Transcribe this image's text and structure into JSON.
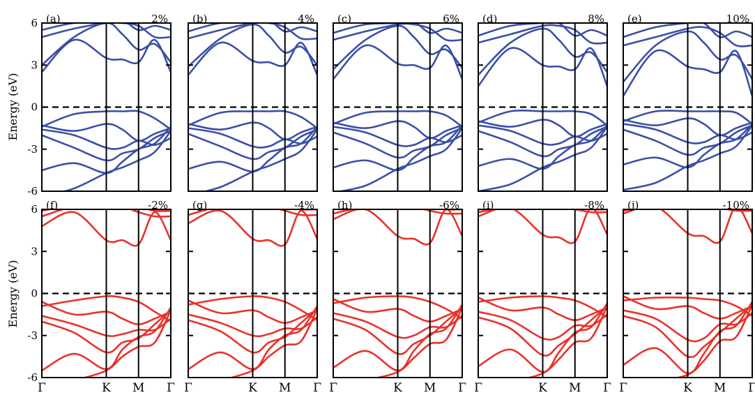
{
  "figure": {
    "ylabel": "Energy (eV)",
    "yticks": [
      6,
      3,
      0,
      -3,
      -6
    ],
    "ylim": [
      -6,
      6
    ],
    "kpoints": [
      "Γ",
      "K",
      "M",
      "Γ"
    ],
    "kpath_fractions": [
      0,
      0.5,
      0.75,
      1
    ],
    "fermi_level": 0,
    "colors": {
      "tensile": "#3a4fa6",
      "compressive": "#e8322b",
      "axes": "#000000"
    }
  },
  "chart_data": [
    {
      "type": "line",
      "panel": "(a)",
      "strain": "2%",
      "family": "tensile",
      "kx": [
        0,
        0.25,
        0.5,
        0.625,
        0.75,
        0.875,
        1
      ],
      "series": [
        {
          "values": [
            -6.4,
            -5.8,
            -4.7,
            -4.3,
            -3.8,
            -3.2,
            -1.7
          ]
        },
        {
          "values": [
            -4.5,
            -4.0,
            -4.7,
            -3.9,
            -3.0,
            -2.6,
            -1.4
          ]
        },
        {
          "values": [
            -2.0,
            -2.9,
            -3.8,
            -3.3,
            -3.0,
            -2.2,
            -1.7
          ]
        },
        {
          "values": [
            -1.6,
            -2.0,
            -2.9,
            -2.9,
            -2.4,
            -2.7,
            -2.2
          ]
        },
        {
          "values": [
            -1.3,
            -1.7,
            -1.2,
            -1.6,
            -2.4,
            -1.9,
            -1.5
          ]
        },
        {
          "values": [
            -1.4,
            -0.5,
            -0.3,
            -0.3,
            -0.3,
            -0.8,
            -1.6
          ]
        },
        {
          "values": [
            2.5,
            4.8,
            3.5,
            3.4,
            3.2,
            4.8,
            2.5
          ]
        },
        {
          "values": [
            3.0,
            5.0,
            6.0,
            5.2,
            4.1,
            4.5,
            3.2
          ]
        },
        {
          "values": [
            5.0,
            5.6,
            6.0,
            6.0,
            5.8,
            5.0,
            5.0
          ]
        },
        {
          "values": [
            5.5,
            6.0,
            6.0,
            6.2,
            5.5,
            5.8,
            5.5
          ]
        }
      ]
    },
    {
      "type": "line",
      "panel": "(b)",
      "strain": "4%",
      "family": "tensile",
      "kx": [
        0,
        0.25,
        0.5,
        0.625,
        0.75,
        0.875,
        1
      ],
      "series": [
        {
          "values": [
            -6.3,
            -5.7,
            -4.6,
            -4.2,
            -3.7,
            -3.1,
            -1.6
          ]
        },
        {
          "values": [
            -4.4,
            -3.9,
            -4.6,
            -3.8,
            -2.9,
            -2.6,
            -1.4
          ]
        },
        {
          "values": [
            -1.9,
            -2.8,
            -3.7,
            -3.2,
            -2.9,
            -2.1,
            -1.6
          ]
        },
        {
          "values": [
            -1.5,
            -1.9,
            -2.8,
            -2.8,
            -2.3,
            -2.6,
            -2.1
          ]
        },
        {
          "values": [
            -1.2,
            -1.6,
            -1.1,
            -1.5,
            -2.3,
            -1.8,
            -1.4
          ]
        },
        {
          "values": [
            -1.3,
            -0.4,
            -0.3,
            -0.3,
            -0.3,
            -0.7,
            -1.5
          ]
        },
        {
          "values": [
            2.3,
            4.6,
            3.3,
            3.2,
            3.0,
            4.6,
            2.3
          ]
        },
        {
          "values": [
            2.9,
            4.9,
            5.9,
            5.1,
            3.9,
            4.3,
            3.0
          ]
        },
        {
          "values": [
            4.9,
            5.5,
            6.0,
            6.0,
            5.7,
            4.9,
            4.9
          ]
        },
        {
          "values": [
            5.4,
            6.0,
            6.0,
            6.2,
            5.4,
            5.7,
            5.4
          ]
        }
      ]
    },
    {
      "type": "line",
      "panel": "(c)",
      "strain": "6%",
      "family": "tensile",
      "kx": [
        0,
        0.25,
        0.5,
        0.625,
        0.75,
        0.875,
        1
      ],
      "series": [
        {
          "values": [
            -6.1,
            -5.6,
            -4.4,
            -4.0,
            -3.5,
            -3.0,
            -1.5
          ]
        },
        {
          "values": [
            -4.3,
            -3.8,
            -4.5,
            -3.6,
            -2.8,
            -2.5,
            -1.3
          ]
        },
        {
          "values": [
            -1.8,
            -2.6,
            -3.6,
            -3.1,
            -2.8,
            -2.0,
            -1.5
          ]
        },
        {
          "values": [
            -1.4,
            -1.8,
            -2.7,
            -2.7,
            -2.2,
            -2.5,
            -2.0
          ]
        },
        {
          "values": [
            -1.1,
            -1.5,
            -1.0,
            -1.4,
            -2.2,
            -1.7,
            -1.3
          ]
        },
        {
          "values": [
            -1.2,
            -0.4,
            -0.3,
            -0.3,
            -0.3,
            -0.6,
            -1.4
          ]
        },
        {
          "values": [
            2.0,
            4.4,
            3.1,
            3.0,
            2.8,
            4.4,
            2.0
          ]
        },
        {
          "values": [
            2.7,
            4.8,
            5.8,
            5.0,
            3.8,
            4.1,
            2.8
          ]
        },
        {
          "values": [
            4.8,
            5.4,
            5.9,
            5.9,
            5.6,
            4.8,
            4.8
          ]
        },
        {
          "values": [
            5.3,
            5.9,
            6.0,
            6.1,
            5.3,
            5.6,
            5.3
          ]
        }
      ]
    },
    {
      "type": "line",
      "panel": "(d)",
      "strain": "8%",
      "family": "tensile",
      "kx": [
        0,
        0.25,
        0.5,
        0.625,
        0.75,
        0.875,
        1
      ],
      "series": [
        {
          "values": [
            -6.0,
            -5.5,
            -4.3,
            -3.9,
            -3.4,
            -2.9,
            -1.4
          ]
        },
        {
          "values": [
            -4.2,
            -3.7,
            -4.4,
            -3.5,
            -2.7,
            -2.4,
            -1.3
          ]
        },
        {
          "values": [
            -1.7,
            -2.5,
            -3.5,
            -3.0,
            -2.7,
            -1.9,
            -1.4
          ]
        },
        {
          "values": [
            -1.3,
            -1.7,
            -2.6,
            -2.6,
            -2.1,
            -2.4,
            -1.9
          ]
        },
        {
          "values": [
            -1.0,
            -1.4,
            -0.9,
            -1.3,
            -2.1,
            -1.6,
            -1.2
          ]
        },
        {
          "values": [
            -1.1,
            -0.3,
            -0.3,
            -0.3,
            -0.3,
            -0.5,
            -1.3
          ]
        },
        {
          "values": [
            1.5,
            4.2,
            3.0,
            2.9,
            2.7,
            4.2,
            1.5
          ]
        },
        {
          "values": [
            2.3,
            4.6,
            5.6,
            4.8,
            3.6,
            3.9,
            2.5
          ]
        },
        {
          "values": [
            4.6,
            5.2,
            5.8,
            5.8,
            5.5,
            4.6,
            4.6
          ]
        },
        {
          "values": [
            5.1,
            5.8,
            6.0,
            6.0,
            5.1,
            5.5,
            5.1
          ]
        }
      ]
    },
    {
      "type": "line",
      "panel": "(e)",
      "strain": "10%",
      "family": "tensile",
      "kx": [
        0,
        0.25,
        0.5,
        0.625,
        0.75,
        0.875,
        1
      ],
      "series": [
        {
          "values": [
            -5.9,
            -5.4,
            -4.2,
            -3.8,
            -3.3,
            -2.8,
            -1.3
          ]
        },
        {
          "values": [
            -4.1,
            -3.6,
            -4.3,
            -3.4,
            -2.6,
            -2.3,
            -1.2
          ]
        },
        {
          "values": [
            -1.6,
            -2.4,
            -3.4,
            -2.9,
            -2.6,
            -1.8,
            -1.3
          ]
        },
        {
          "values": [
            -1.2,
            -1.6,
            -2.5,
            -2.5,
            -2.0,
            -2.3,
            -1.8
          ]
        },
        {
          "values": [
            -0.9,
            -1.3,
            -0.8,
            -1.2,
            -2.0,
            -1.5,
            -1.1
          ]
        },
        {
          "values": [
            -1.0,
            -0.3,
            -0.3,
            -0.3,
            -0.3,
            -0.4,
            -1.2
          ]
        },
        {
          "values": [
            0.8,
            4.0,
            2.9,
            2.7,
            2.5,
            4.0,
            0.8
          ]
        },
        {
          "values": [
            1.8,
            4.4,
            5.4,
            4.6,
            3.4,
            3.7,
            2.0
          ]
        },
        {
          "values": [
            4.4,
            5.0,
            5.6,
            5.7,
            5.3,
            4.4,
            4.4
          ]
        },
        {
          "values": [
            5.0,
            5.7,
            6.0,
            6.0,
            5.0,
            5.4,
            5.0
          ]
        }
      ]
    },
    {
      "type": "line",
      "panel": "(f)",
      "strain": "-2%",
      "family": "compressive",
      "kx": [
        0,
        0.25,
        0.5,
        0.625,
        0.75,
        0.875,
        1
      ],
      "series": [
        {
          "values": [
            -6.6,
            -6.2,
            -5.5,
            -4.5,
            -3.8,
            -3.5,
            -1.2
          ]
        },
        {
          "values": [
            -5.5,
            -4.3,
            -5.4,
            -4.0,
            -3.1,
            -2.7,
            -1.0
          ]
        },
        {
          "values": [
            -2.0,
            -2.8,
            -4.2,
            -3.5,
            -3.2,
            -2.2,
            -1.2
          ]
        },
        {
          "values": [
            -1.6,
            -2.2,
            -3.0,
            -2.9,
            -2.6,
            -2.6,
            -1.8
          ]
        },
        {
          "values": [
            -0.6,
            -1.5,
            -1.3,
            -1.8,
            -2.2,
            -1.8,
            -1.3
          ]
        },
        {
          "values": [
            -0.9,
            -0.5,
            -0.2,
            -0.3,
            -0.6,
            -1.3,
            -2.0
          ]
        },
        {
          "values": [
            4.8,
            5.8,
            3.8,
            3.8,
            3.5,
            5.8,
            3.8
          ]
        },
        {
          "values": [
            5.5,
            6.2,
            6.2,
            6.2,
            5.8,
            5.5,
            5.5
          ]
        },
        {
          "values": [
            5.9,
            6.3,
            6.3,
            6.3,
            6.2,
            5.9,
            5.9
          ]
        }
      ]
    },
    {
      "type": "line",
      "panel": "(g)",
      "strain": "-4%",
      "family": "compressive",
      "kx": [
        0,
        0.25,
        0.5,
        0.625,
        0.75,
        0.875,
        1
      ],
      "series": [
        {
          "values": [
            -6.6,
            -6.2,
            -5.5,
            -4.5,
            -3.7,
            -3.4,
            -1.1
          ]
        },
        {
          "values": [
            -5.4,
            -4.2,
            -5.4,
            -4.0,
            -3.0,
            -2.6,
            -0.9
          ]
        },
        {
          "values": [
            -1.9,
            -2.7,
            -4.2,
            -3.5,
            -3.1,
            -2.1,
            -1.1
          ]
        },
        {
          "values": [
            -1.5,
            -2.1,
            -3.0,
            -2.9,
            -2.5,
            -2.5,
            -1.7
          ]
        },
        {
          "values": [
            -0.5,
            -1.4,
            -1.2,
            -1.7,
            -2.1,
            -1.7,
            -1.2
          ]
        },
        {
          "values": [
            -0.8,
            -0.4,
            -0.2,
            -0.3,
            -0.6,
            -1.2,
            -1.9
          ]
        },
        {
          "values": [
            5.0,
            5.9,
            3.9,
            3.8,
            3.5,
            5.9,
            3.9
          ]
        },
        {
          "values": [
            5.6,
            6.2,
            6.2,
            6.2,
            5.9,
            5.6,
            5.6
          ]
        },
        {
          "values": [
            6.0,
            6.3,
            6.3,
            6.3,
            6.2,
            6.0,
            6.0
          ]
        }
      ]
    },
    {
      "type": "line",
      "panel": "(h)",
      "strain": "-6%",
      "family": "compressive",
      "kx": [
        0,
        0.25,
        0.5,
        0.625,
        0.75,
        0.875,
        1
      ],
      "series": [
        {
          "values": [
            -6.6,
            -6.2,
            -5.6,
            -4.6,
            -3.6,
            -3.3,
            -1.0
          ]
        },
        {
          "values": [
            -5.3,
            -4.1,
            -5.5,
            -4.1,
            -2.9,
            -2.5,
            -0.8
          ]
        },
        {
          "values": [
            -1.8,
            -2.6,
            -4.3,
            -3.6,
            -3.0,
            -2.0,
            -1.0
          ]
        },
        {
          "values": [
            -1.4,
            -2.0,
            -3.1,
            -3.0,
            -2.4,
            -2.4,
            -1.6
          ]
        },
        {
          "values": [
            -0.4,
            -1.3,
            -1.1,
            -1.6,
            -2.0,
            -1.6,
            -1.1
          ]
        },
        {
          "values": [
            -0.7,
            -0.3,
            -0.2,
            -0.3,
            -0.6,
            -1.1,
            -1.8
          ]
        },
        {
          "values": [
            5.3,
            6.0,
            4.1,
            3.9,
            3.6,
            6.0,
            4.1
          ]
        },
        {
          "values": [
            5.7,
            6.2,
            6.2,
            6.2,
            5.9,
            5.7,
            5.7
          ]
        },
        {
          "values": [
            6.0,
            6.3,
            6.3,
            6.3,
            6.2,
            6.0,
            6.0
          ]
        }
      ]
    },
    {
      "type": "line",
      "panel": "(i)",
      "strain": "-8%",
      "family": "compressive",
      "kx": [
        0,
        0.25,
        0.5,
        0.625,
        0.75,
        0.875,
        1
      ],
      "series": [
        {
          "values": [
            -6.7,
            -6.3,
            -5.7,
            -4.7,
            -3.5,
            -3.2,
            -0.9
          ]
        },
        {
          "values": [
            -5.2,
            -4.0,
            -5.6,
            -4.2,
            -2.8,
            -2.4,
            -0.7
          ]
        },
        {
          "values": [
            -1.7,
            -2.5,
            -4.4,
            -3.7,
            -2.9,
            -1.9,
            -0.9
          ]
        },
        {
          "values": [
            -1.3,
            -1.9,
            -3.2,
            -3.1,
            -2.3,
            -2.3,
            -1.5
          ]
        },
        {
          "values": [
            -0.3,
            -1.2,
            -1.0,
            -1.5,
            -1.9,
            -1.5,
            -1.0
          ]
        },
        {
          "values": [
            -0.6,
            -0.3,
            -0.2,
            -0.3,
            -0.5,
            -1.0,
            -1.7
          ]
        },
        {
          "values": [
            5.5,
            6.1,
            4.2,
            4.0,
            3.7,
            6.1,
            4.2
          ]
        },
        {
          "values": [
            5.8,
            6.2,
            6.2,
            6.2,
            6.0,
            5.8,
            5.8
          ]
        },
        {
          "values": [
            6.0,
            6.3,
            6.3,
            6.3,
            6.2,
            6.0,
            6.0
          ]
        }
      ]
    },
    {
      "type": "line",
      "panel": "(j)",
      "strain": "-10%",
      "family": "compressive",
      "kx": [
        0,
        0.25,
        0.5,
        0.625,
        0.75,
        0.875,
        1
      ],
      "series": [
        {
          "values": [
            -6.7,
            -6.3,
            -5.8,
            -4.8,
            -3.4,
            -3.1,
            -0.8
          ]
        },
        {
          "values": [
            -5.1,
            -3.9,
            -5.7,
            -4.3,
            -2.7,
            -2.3,
            -0.6
          ]
        },
        {
          "values": [
            -1.6,
            -2.4,
            -4.5,
            -3.8,
            -2.8,
            -1.8,
            -0.8
          ]
        },
        {
          "values": [
            -1.2,
            -1.8,
            -3.3,
            -3.2,
            -2.2,
            -2.2,
            -1.4
          ]
        },
        {
          "values": [
            -0.2,
            -1.1,
            -0.9,
            -1.4,
            -1.8,
            -1.4,
            -0.9
          ]
        },
        {
          "values": [
            -0.5,
            -0.3,
            -0.3,
            -0.4,
            -0.5,
            -0.9,
            -1.6
          ]
        },
        {
          "values": [
            5.7,
            6.2,
            4.3,
            4.1,
            3.7,
            6.2,
            4.3
          ]
        },
        {
          "values": [
            5.9,
            6.3,
            6.3,
            6.3,
            6.1,
            5.9,
            5.9
          ]
        },
        {
          "values": [
            6.1,
            6.4,
            6.4,
            6.4,
            6.3,
            6.1,
            6.1
          ]
        }
      ]
    }
  ]
}
